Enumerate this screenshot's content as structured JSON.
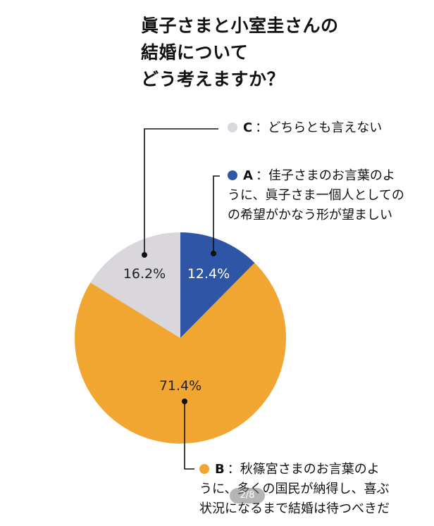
{
  "title_lines": [
    "眞子さまと小室圭さんの",
    "結婚について",
    "どう考えますか？"
  ],
  "colors": {
    "A": "#2f56a6",
    "B": "#f0a630",
    "C": "#d9d6dc",
    "leader": "#111111"
  },
  "legend": {
    "C": {
      "key": "C",
      "lines": [
        "：どちらとも言えない"
      ]
    },
    "A": {
      "key": "A",
      "lines": [
        "：佳子さまのお言葉のよ",
        "うに、眞子さま一個人としての",
        "の希望がかなう形が望ましい"
      ]
    },
    "B": {
      "key": "B",
      "lines": [
        "：秋篠宮さまのお言葉のよ",
        "うに、多くの国民が納得し、喜ぶ",
        "状況になるまで結婚は待つべきだ"
      ]
    }
  },
  "pager": "2/8",
  "chart_data": {
    "type": "pie",
    "slices": [
      {
        "key": "A",
        "value": 12.4,
        "label": "12.4%"
      },
      {
        "key": "B",
        "value": 71.4,
        "label": "71.4%"
      },
      {
        "key": "C",
        "value": 16.2,
        "label": "16.2%"
      }
    ]
  }
}
